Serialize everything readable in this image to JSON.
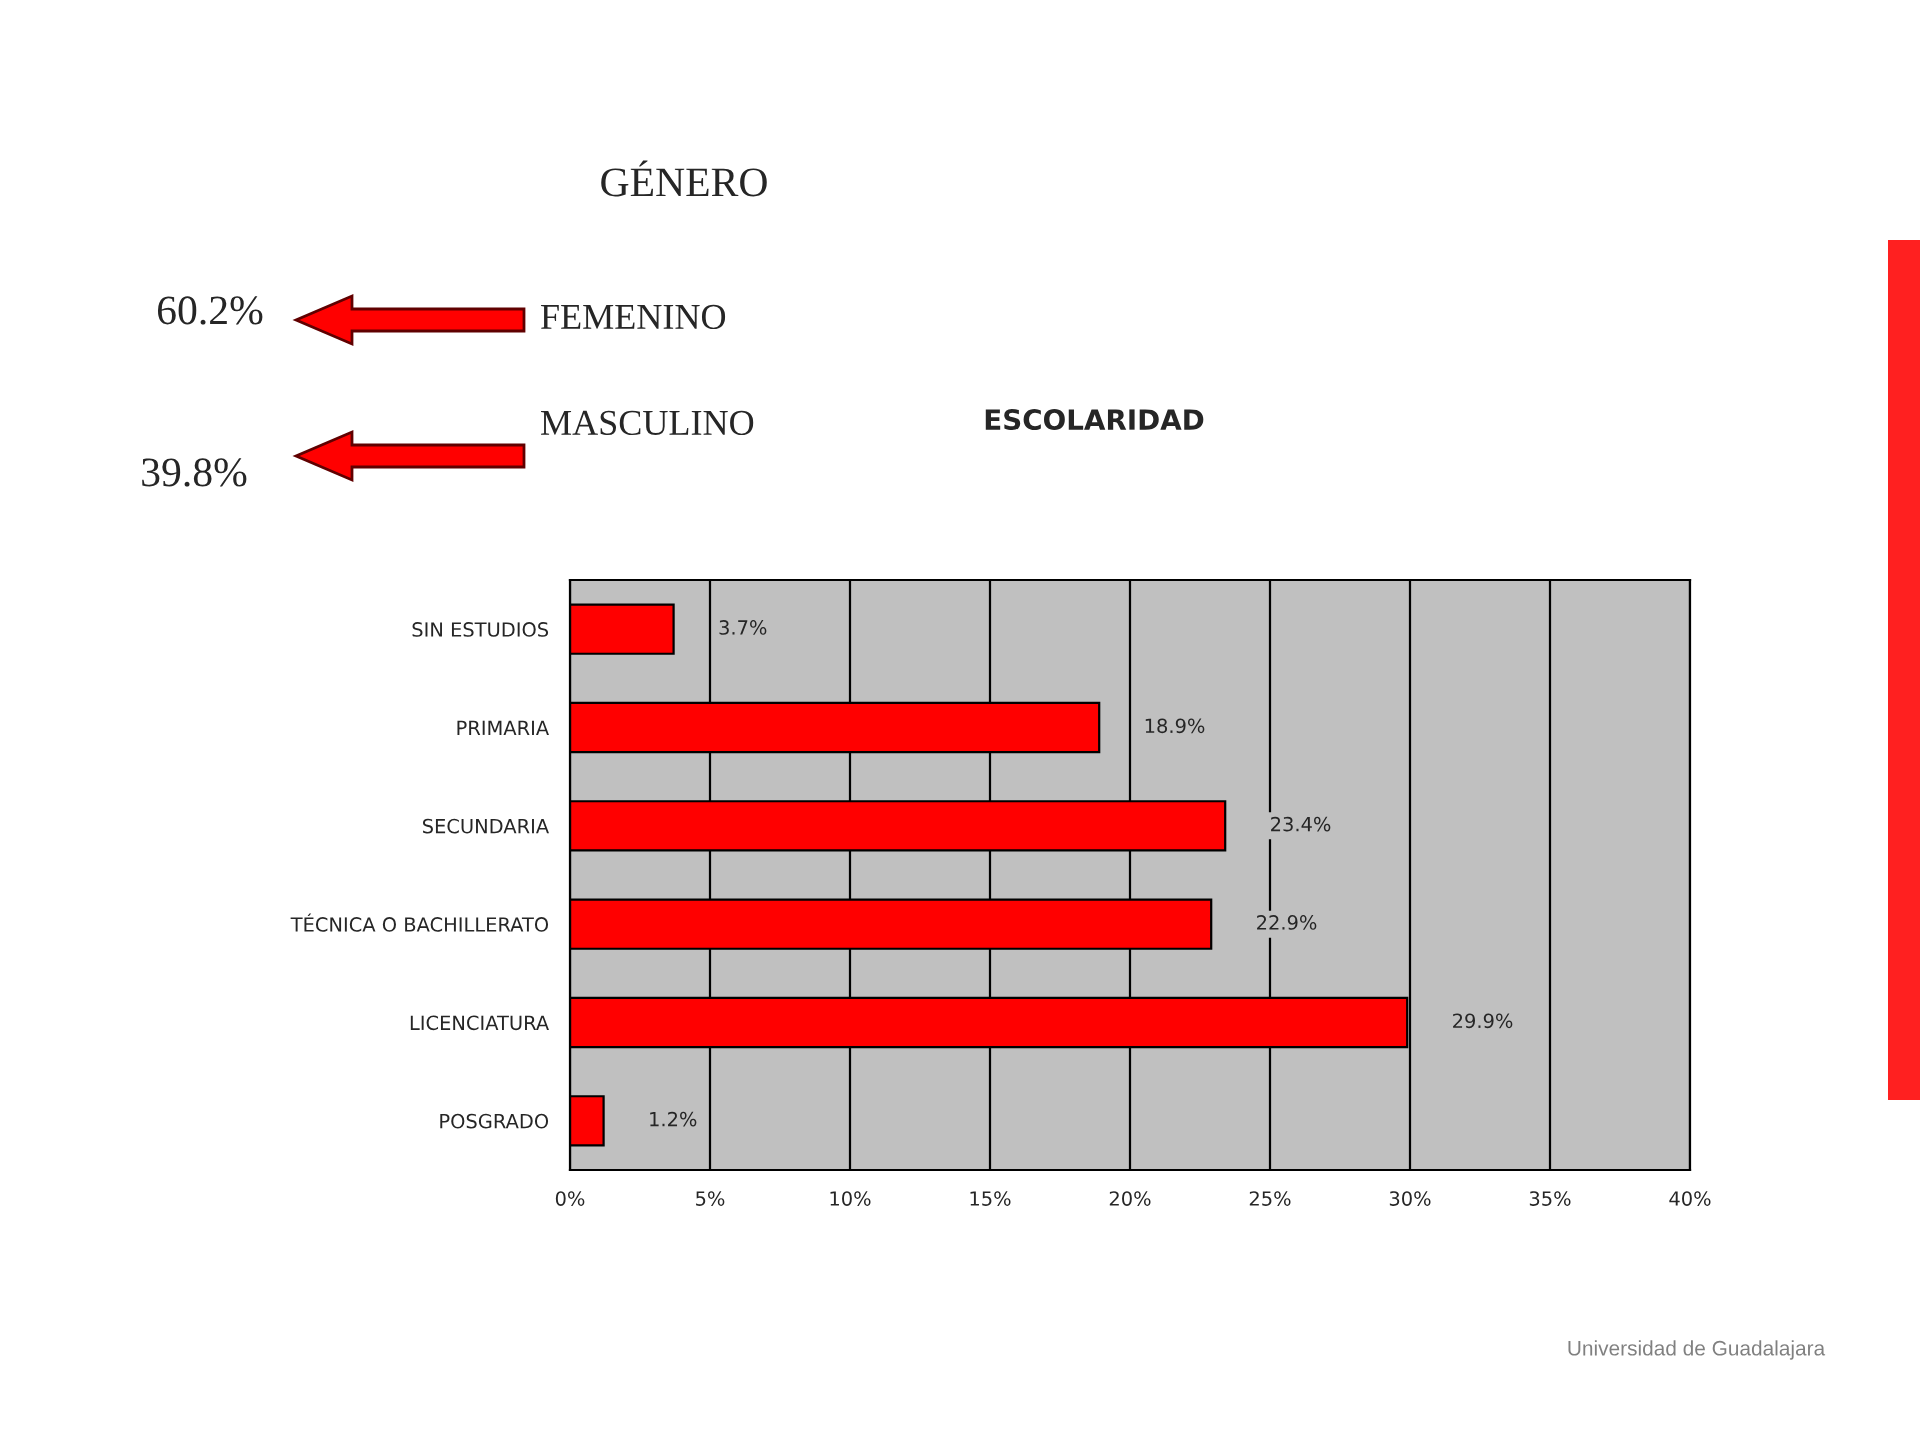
{
  "chart_data": [
    {
      "type": "other",
      "title": "GÉNERO",
      "categories": [
        "FEMENINO",
        "MASCULINO"
      ],
      "values": [
        60.2,
        39.8
      ],
      "value_labels": [
        "60.2%",
        "39.8%"
      ],
      "color": "#ff0000"
    },
    {
      "type": "bar",
      "orientation": "horizontal",
      "title": "ESCOLARIDAD",
      "categories": [
        "SIN ESTUDIOS",
        "PRIMARIA",
        "SECUNDARIA",
        "TÉCNICA O BACHILLERATO",
        "LICENCIATURA",
        "POSGRADO"
      ],
      "values": [
        3.7,
        18.9,
        23.4,
        22.9,
        29.9,
        1.2
      ],
      "value_labels": [
        "3.7%",
        "18.9%",
        "23.4%",
        "22.9%",
        "29.9%",
        "1.2%"
      ],
      "color": "#ff0000",
      "xlim": [
        0,
        40
      ],
      "xticks": [
        {
          "value": 0,
          "label": "0%"
        },
        {
          "value": 5,
          "label": "5%"
        },
        {
          "value": 10,
          "label": "10%"
        },
        {
          "value": 15,
          "label": "15%"
        },
        {
          "value": 20,
          "label": "20%"
        },
        {
          "value": 25,
          "label": "25%"
        },
        {
          "value": 30,
          "label": "30%"
        },
        {
          "value": 35,
          "label": "35%"
        },
        {
          "value": 40,
          "label": "40%"
        }
      ],
      "grid": "x",
      "annotations": [
        "Universidad de Guadalajara"
      ]
    }
  ]
}
